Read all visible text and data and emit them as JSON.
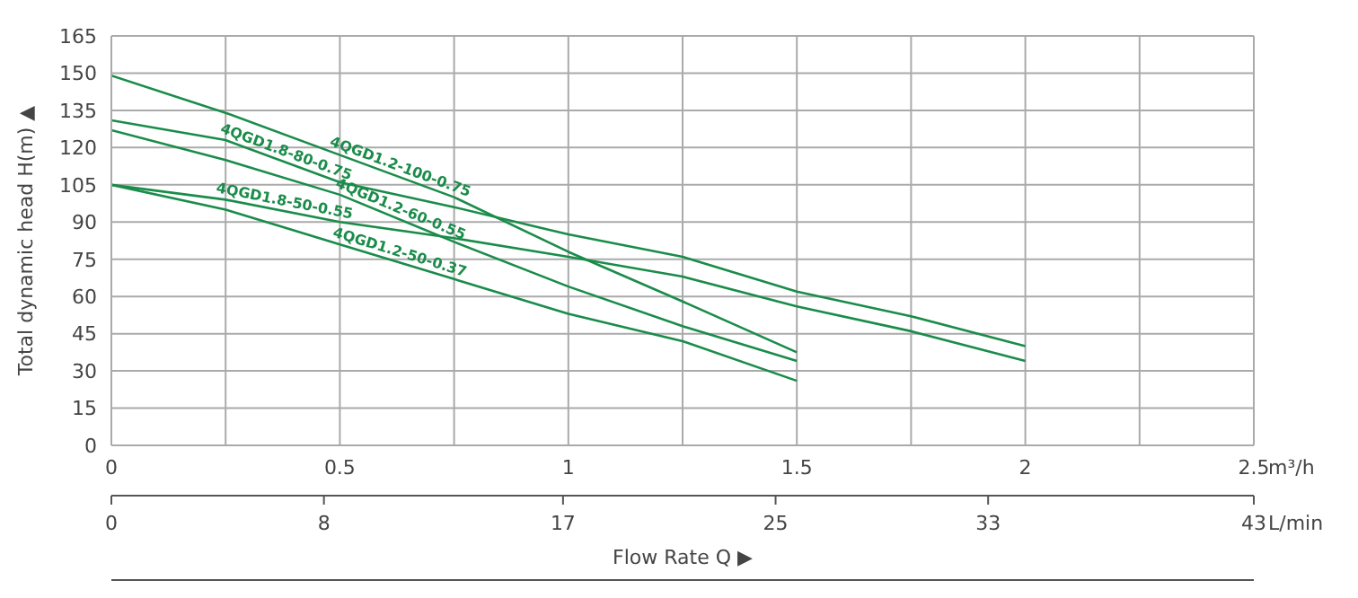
{
  "chart_data": {
    "type": "line",
    "xlabel": "m³/h",
    "x2label": "L/min",
    "ylabel": "Total dynamic head H(m) ▲",
    "annotations": [
      "Flow Rate Q ▶"
    ],
    "xlim": [
      0,
      2.5
    ],
    "xticks": [
      0,
      {
        "value": 0.25,
        "label": null
      },
      0.5,
      {
        "value": 0.75,
        "label": null
      },
      1,
      {
        "value": 1.25,
        "label": null
      },
      1.5,
      {
        "value": 1.75,
        "label": null
      },
      2,
      {
        "value": 2.25,
        "label": null
      },
      2.5
    ],
    "x2lim": [
      0,
      43
    ],
    "x2ticks": [
      0,
      8,
      17,
      25,
      33,
      43
    ],
    "ylim": [
      0,
      165
    ],
    "yticks": [
      0,
      15,
      30,
      45,
      60,
      75,
      90,
      105,
      120,
      135,
      150,
      165
    ],
    "grid": true,
    "legend": false,
    "marker": "none",
    "line_style": "solid",
    "series": [
      {
        "name": "4QGD1.2-100-0.75",
        "color": "#1a8c4a",
        "x": [
          0,
          0.25,
          0.5,
          0.75,
          1,
          1.25,
          1.5
        ],
        "values": [
          149,
          134,
          117,
          100,
          78,
          58,
          37.5
        ]
      },
      {
        "name": "4QGD1.8-80-0.75",
        "color": "#1a8c4a",
        "x": [
          0,
          0.25,
          0.5,
          0.75,
          1,
          1.25,
          1.5,
          1.75,
          2
        ],
        "values": [
          131,
          123,
          106,
          96,
          85,
          76,
          62,
          52,
          40
        ]
      },
      {
        "name": "4QGD1.2-60-0.55",
        "color": "#1a8c4a",
        "x": [
          0,
          0.25,
          0.5,
          0.75,
          1,
          1.25,
          1.5
        ],
        "values": [
          127,
          115,
          101,
          82,
          64,
          48,
          34
        ]
      },
      {
        "name": "4QGD1.8-50-0.55",
        "color": "#1a8c4a",
        "x": [
          0,
          0.25,
          0.5,
          0.75,
          1,
          1.25,
          1.5,
          1.75,
          2
        ],
        "values": [
          105,
          99,
          90,
          83.5,
          76,
          68,
          56,
          46,
          34
        ]
      },
      {
        "name": "4QGD1.2-50-0.37",
        "color": "#1a8c4a",
        "x": [
          0,
          0.25,
          0.5,
          0.75,
          1,
          1.25,
          1.5
        ],
        "values": [
          105,
          95,
          81,
          67,
          53,
          42,
          26
        ]
      }
    ]
  }
}
